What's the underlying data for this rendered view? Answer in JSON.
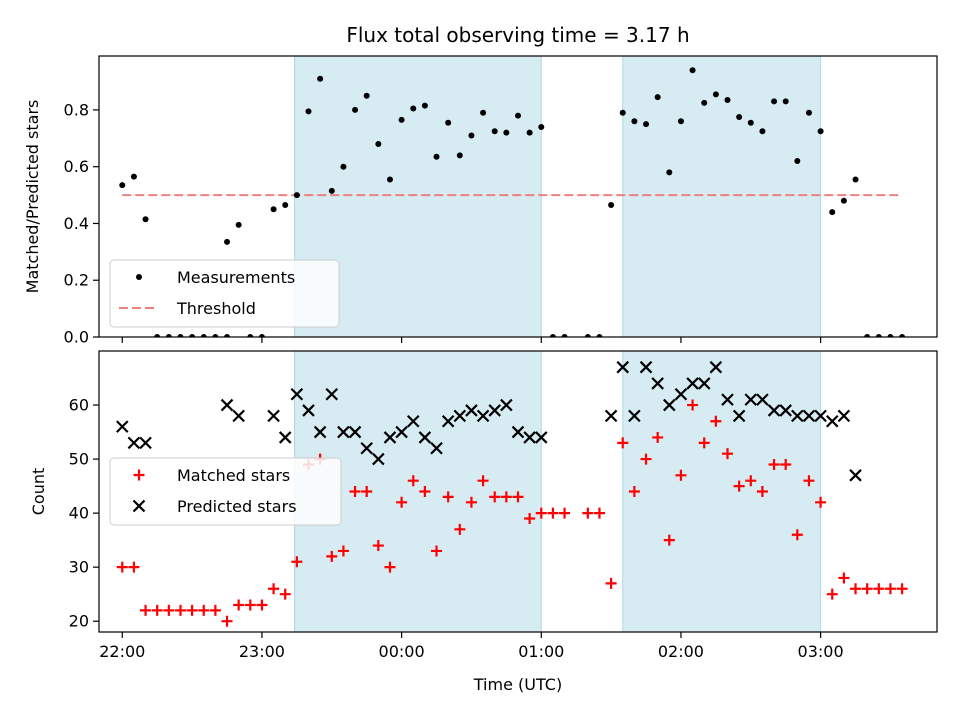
{
  "figure_title": "Flux total observing time = 3.17 h",
  "chart_data": [
    {
      "type": "scatter",
      "panel": "top",
      "ylabel": "Matched/Predicted stars",
      "xlabel": "",
      "xlim": [
        "21:50",
        "03:50"
      ],
      "ylim": [
        0,
        0.99
      ],
      "yticks": [
        0.0,
        0.2,
        0.4,
        0.6,
        0.8
      ],
      "grid": false,
      "legend_position": "lower-left",
      "shaded_intervals": [
        [
          "23:14",
          "01:00"
        ],
        [
          "01:35",
          "03:00"
        ]
      ],
      "threshold": {
        "name": "Threshold",
        "value": 0.5,
        "x": [
          "22:00",
          "03:35"
        ],
        "color": "#f08080"
      },
      "series": [
        {
          "name": "Measurements",
          "color": "#000000",
          "marker": "dot",
          "points": [
            [
              "22:00",
              0.535
            ],
            [
              "22:05",
              0.565
            ],
            [
              "22:10",
              0.415
            ],
            [
              "22:15",
              0.0
            ],
            [
              "22:20",
              0.0
            ],
            [
              "22:25",
              0.0
            ],
            [
              "22:30",
              0.0
            ],
            [
              "22:35",
              0.0
            ],
            [
              "22:40",
              0.0
            ],
            [
              "22:45",
              0.0
            ],
            [
              "22:45",
              0.335
            ],
            [
              "22:50",
              0.395
            ],
            [
              "22:55",
              0.0
            ],
            [
              "23:00",
              0.0
            ],
            [
              "23:05",
              0.45
            ],
            [
              "23:10",
              0.465
            ],
            [
              "23:15",
              0.5
            ],
            [
              "23:20",
              0.795
            ],
            [
              "23:25",
              0.91
            ],
            [
              "23:30",
              0.515
            ],
            [
              "23:35",
              0.6
            ],
            [
              "23:40",
              0.8
            ],
            [
              "23:45",
              0.85
            ],
            [
              "23:50",
              0.68
            ],
            [
              "23:55",
              0.555
            ],
            [
              "00:00",
              0.765
            ],
            [
              "00:05",
              0.805
            ],
            [
              "00:10",
              0.815
            ],
            [
              "00:15",
              0.635
            ],
            [
              "00:20",
              0.755
            ],
            [
              "00:25",
              0.64
            ],
            [
              "00:30",
              0.71
            ],
            [
              "00:35",
              0.79
            ],
            [
              "00:40",
              0.725
            ],
            [
              "00:45",
              0.72
            ],
            [
              "00:50",
              0.78
            ],
            [
              "00:55",
              0.72
            ],
            [
              "01:00",
              0.74
            ],
            [
              "01:05",
              0.0
            ],
            [
              "01:10",
              0.0
            ],
            [
              "01:20",
              0.0
            ],
            [
              "01:25",
              0.0
            ],
            [
              "01:30",
              0.465
            ],
            [
              "01:35",
              0.79
            ],
            [
              "01:40",
              0.76
            ],
            [
              "01:45",
              0.75
            ],
            [
              "01:50",
              0.845
            ],
            [
              "01:55",
              0.58
            ],
            [
              "02:00",
              0.76
            ],
            [
              "02:05",
              0.94
            ],
            [
              "02:10",
              0.825
            ],
            [
              "02:15",
              0.855
            ],
            [
              "02:20",
              0.835
            ],
            [
              "02:25",
              0.775
            ],
            [
              "02:30",
              0.755
            ],
            [
              "02:35",
              0.725
            ],
            [
              "02:40",
              0.83
            ],
            [
              "02:45",
              0.83
            ],
            [
              "02:50",
              0.62
            ],
            [
              "02:55",
              0.79
            ],
            [
              "03:00",
              0.725
            ],
            [
              "03:05",
              0.44
            ],
            [
              "03:10",
              0.48
            ],
            [
              "03:15",
              0.555
            ],
            [
              "03:20",
              0.0
            ],
            [
              "03:25",
              0.0
            ],
            [
              "03:30",
              0.0
            ],
            [
              "03:35",
              0.0
            ]
          ]
        }
      ],
      "legend": [
        "Measurements",
        "Threshold"
      ]
    },
    {
      "type": "scatter",
      "panel": "bottom",
      "ylabel": "Count",
      "xlabel": "Time (UTC)",
      "xlim": [
        "21:50",
        "03:50"
      ],
      "ylim": [
        18,
        70
      ],
      "yticks": [
        20,
        30,
        40,
        50,
        60
      ],
      "xticks": [
        "22:00",
        "23:00",
        "00:00",
        "01:00",
        "02:00",
        "03:00"
      ],
      "grid": false,
      "legend_position": "center-left",
      "shaded_intervals": [
        [
          "23:14",
          "01:00"
        ],
        [
          "01:35",
          "03:00"
        ]
      ],
      "series": [
        {
          "name": "Matched stars",
          "color": "#ff0000",
          "marker": "plus",
          "points": [
            [
              "22:00",
              30
            ],
            [
              "22:05",
              30
            ],
            [
              "22:10",
              22
            ],
            [
              "22:15",
              22
            ],
            [
              "22:20",
              22
            ],
            [
              "22:25",
              22
            ],
            [
              "22:30",
              22
            ],
            [
              "22:35",
              22
            ],
            [
              "22:40",
              22
            ],
            [
              "22:45",
              20
            ],
            [
              "22:50",
              23
            ],
            [
              "22:55",
              23
            ],
            [
              "23:00",
              23
            ],
            [
              "23:05",
              26
            ],
            [
              "23:10",
              25
            ],
            [
              "23:15",
              31
            ],
            [
              "23:20",
              49
            ],
            [
              "23:25",
              50
            ],
            [
              "23:30",
              32
            ],
            [
              "23:35",
              33
            ],
            [
              "23:40",
              44
            ],
            [
              "23:45",
              44
            ],
            [
              "23:50",
              34
            ],
            [
              "23:55",
              30
            ],
            [
              "00:00",
              42
            ],
            [
              "00:05",
              46
            ],
            [
              "00:10",
              44
            ],
            [
              "00:15",
              33
            ],
            [
              "00:20",
              43
            ],
            [
              "00:25",
              37
            ],
            [
              "00:30",
              42
            ],
            [
              "00:35",
              46
            ],
            [
              "00:40",
              43
            ],
            [
              "00:45",
              43
            ],
            [
              "00:50",
              43
            ],
            [
              "00:55",
              39
            ],
            [
              "01:00",
              40
            ],
            [
              "01:05",
              40
            ],
            [
              "01:10",
              40
            ],
            [
              "01:20",
              40
            ],
            [
              "01:25",
              40
            ],
            [
              "01:30",
              27
            ],
            [
              "01:35",
              53
            ],
            [
              "01:40",
              44
            ],
            [
              "01:45",
              50
            ],
            [
              "01:50",
              54
            ],
            [
              "01:55",
              35
            ],
            [
              "02:00",
              47
            ],
            [
              "02:05",
              60
            ],
            [
              "02:10",
              53
            ],
            [
              "02:15",
              57
            ],
            [
              "02:20",
              51
            ],
            [
              "02:25",
              45
            ],
            [
              "02:30",
              46
            ],
            [
              "02:35",
              44
            ],
            [
              "02:40",
              49
            ],
            [
              "02:45",
              49
            ],
            [
              "02:50",
              36
            ],
            [
              "02:55",
              46
            ],
            [
              "03:00",
              42
            ],
            [
              "03:05",
              25
            ],
            [
              "03:10",
              28
            ],
            [
              "03:15",
              26
            ],
            [
              "03:20",
              26
            ],
            [
              "03:25",
              26
            ],
            [
              "03:30",
              26
            ],
            [
              "03:35",
              26
            ]
          ]
        },
        {
          "name": "Predicted stars",
          "color": "#000000",
          "marker": "x",
          "points": [
            [
              "22:00",
              56
            ],
            [
              "22:05",
              53
            ],
            [
              "22:10",
              53
            ],
            [
              "22:45",
              60
            ],
            [
              "22:50",
              58
            ],
            [
              "23:05",
              58
            ],
            [
              "23:10",
              54
            ],
            [
              "23:15",
              62
            ],
            [
              "23:20",
              59
            ],
            [
              "23:25",
              55
            ],
            [
              "23:30",
              62
            ],
            [
              "23:35",
              55
            ],
            [
              "23:40",
              55
            ],
            [
              "23:45",
              52
            ],
            [
              "23:50",
              50
            ],
            [
              "23:55",
              54
            ],
            [
              "00:00",
              55
            ],
            [
              "00:05",
              57
            ],
            [
              "00:10",
              54
            ],
            [
              "00:15",
              52
            ],
            [
              "00:20",
              57
            ],
            [
              "00:25",
              58
            ],
            [
              "00:30",
              59
            ],
            [
              "00:35",
              58
            ],
            [
              "00:40",
              59
            ],
            [
              "00:45",
              60
            ],
            [
              "00:50",
              55
            ],
            [
              "00:55",
              54
            ],
            [
              "01:00",
              54
            ],
            [
              "01:30",
              58
            ],
            [
              "01:35",
              67
            ],
            [
              "01:40",
              58
            ],
            [
              "01:45",
              67
            ],
            [
              "01:50",
              64
            ],
            [
              "01:55",
              60
            ],
            [
              "02:00",
              62
            ],
            [
              "02:05",
              64
            ],
            [
              "02:10",
              64
            ],
            [
              "02:15",
              67
            ],
            [
              "02:20",
              61
            ],
            [
              "02:25",
              58
            ],
            [
              "02:30",
              61
            ],
            [
              "02:35",
              61
            ],
            [
              "02:40",
              59
            ],
            [
              "02:45",
              59
            ],
            [
              "02:50",
              58
            ],
            [
              "02:55",
              58
            ],
            [
              "03:00",
              58
            ],
            [
              "03:05",
              57
            ],
            [
              "03:10",
              58
            ],
            [
              "03:15",
              47
            ]
          ]
        }
      ],
      "legend": [
        "Matched stars",
        "Predicted stars"
      ]
    }
  ],
  "colors": {
    "shade": "#add8e6",
    "axis": "#000000"
  }
}
